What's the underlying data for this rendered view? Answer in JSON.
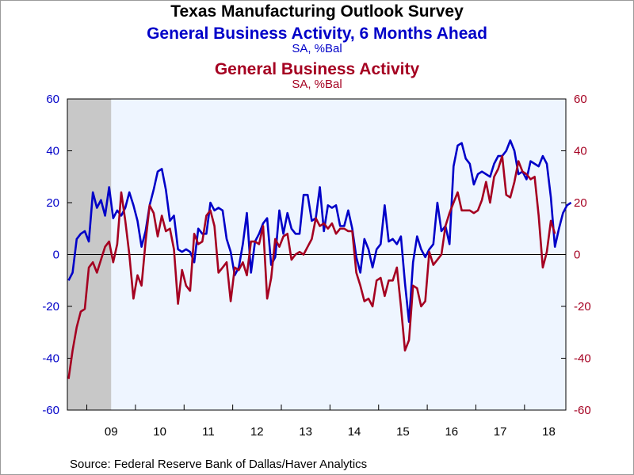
{
  "title": "Texas Manufacturing Outlook Survey",
  "source": "Source:  Federal Reserve Bank of Dallas/Haver Analytics",
  "colors": {
    "series1": "#0000c8",
    "series2": "#a50021",
    "plot_bg": "#eef5ff",
    "recession": "#c8c8c8"
  },
  "chart_data": {
    "type": "line",
    "grid": false,
    "zero_line": true,
    "shaded_region": {
      "start": 2008.6,
      "end": 2009.5
    },
    "x_range": [
      2008.6,
      2018.85
    ],
    "ylim_left": [
      -60,
      60
    ],
    "ylim_right": [
      -60,
      60
    ],
    "yticks_left": [
      "60",
      "40",
      "20",
      "0",
      "-20",
      "-40",
      "-60"
    ],
    "yticks_right": [
      "60",
      "40",
      "20",
      "0",
      "-20",
      "-40",
      "-60"
    ],
    "xticks": [
      "09",
      "10",
      "11",
      "12",
      "13",
      "14",
      "15",
      "16",
      "17",
      "18"
    ],
    "series": [
      {
        "name": "General Business Activity, 6 Months Ahead",
        "unit": "SA, %Bal",
        "axis": "left",
        "start": 2008.625,
        "values": [
          -10,
          -7,
          6,
          8,
          9,
          5,
          24,
          18,
          21,
          15,
          26,
          14,
          17,
          15,
          18,
          24,
          19,
          13,
          3,
          9,
          19,
          25,
          32,
          33,
          25,
          13,
          15,
          2,
          1,
          2,
          1,
          -3,
          10,
          8,
          8,
          20,
          17,
          18,
          17,
          6,
          1,
          -8,
          -5,
          4,
          16,
          -7,
          5,
          8,
          12,
          14,
          -4,
          -1,
          17,
          8,
          16,
          10,
          8,
          8,
          23,
          23,
          13,
          14,
          26,
          9,
          19,
          18,
          19,
          11,
          11,
          17,
          10,
          -1,
          -7,
          6,
          2,
          -5,
          2,
          4,
          19,
          5,
          6,
          4,
          7,
          -11,
          -26,
          -3,
          7,
          2,
          -1,
          2,
          4,
          20,
          9,
          11,
          4,
          34,
          42,
          43,
          37,
          35,
          27,
          31,
          32,
          31,
          30,
          35,
          38,
          38,
          40,
          44,
          40,
          31,
          32,
          29,
          36,
          35,
          34,
          38,
          35,
          22,
          3,
          10,
          16,
          19,
          20
        ]
      },
      {
        "name": "General Business Activity",
        "unit": "SA, %Bal",
        "axis": "right",
        "start": 2008.625,
        "values": [
          -48,
          -37,
          -28,
          -22,
          -21,
          -5,
          -3,
          -7,
          -2,
          3,
          5,
          -3,
          4,
          24,
          13,
          0,
          -17,
          -8,
          -12,
          5,
          19,
          16,
          7,
          15,
          9,
          10,
          2,
          -19,
          -6,
          -12,
          -14,
          8,
          4,
          5,
          15,
          17,
          11,
          -7,
          -5,
          -3,
          -18,
          -5,
          -6,
          -3,
          -8,
          5,
          5,
          4,
          11,
          -17,
          -9,
          6,
          3,
          7,
          8,
          -2,
          0,
          1,
          0,
          3,
          6,
          14,
          11,
          12,
          10,
          12,
          8,
          10,
          10,
          9,
          9,
          -7,
          -12,
          -18,
          -17,
          -20,
          -10,
          -9,
          -16,
          -10,
          -10,
          -5,
          -20,
          -37,
          -33,
          -12,
          -13,
          -20,
          -18,
          1,
          -4,
          -2,
          0,
          11,
          16,
          20,
          24,
          17,
          17,
          17,
          16,
          17,
          21,
          28,
          20,
          30,
          33,
          38,
          23,
          22,
          28,
          36,
          32,
          31,
          29,
          30,
          15,
          -5,
          1,
          13,
          8
        ]
      }
    ]
  }
}
